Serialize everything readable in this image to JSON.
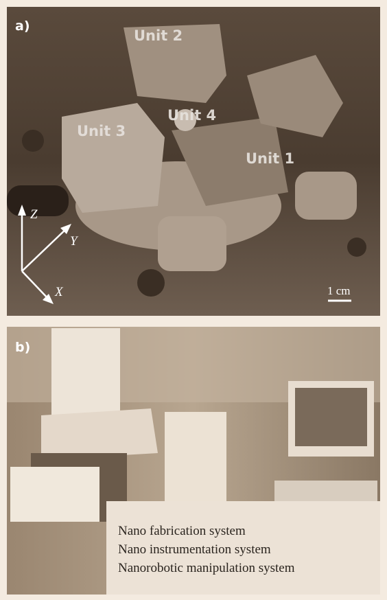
{
  "panel_a": {
    "label": "a)",
    "units": [
      "Unit 2",
      "Unit 4",
      "Unit 3",
      "Unit 1"
    ],
    "axes": [
      "Z",
      "Y",
      "X"
    ],
    "scale": "1 cm"
  },
  "panel_b": {
    "label": "b)",
    "lines": [
      "Nano fabrication system",
      "Nano instrumentation system",
      "Nanorobotic manipulation system"
    ]
  }
}
